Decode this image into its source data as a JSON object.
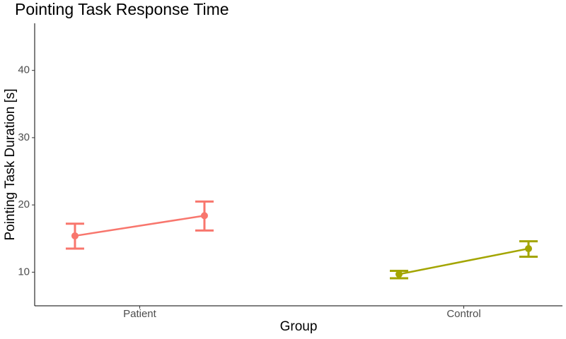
{
  "chart_data": {
    "type": "errorbar",
    "title": "Pointing Task Response Time",
    "x_label": "Group",
    "y_label": "Pointing Task Duration [s]",
    "categories": [
      "Patient",
      "Control"
    ],
    "series": [
      {
        "color": "#f8766d",
        "values": [
          15.4,
          18.4
        ],
        "lower": [
          13.5,
          16.2
        ],
        "upper": [
          17.2,
          20.5
        ]
      },
      {
        "color": "#a3a500",
        "values": [
          9.7,
          13.5
        ],
        "lower": [
          9.1,
          12.3
        ],
        "upper": [
          10.2,
          14.6
        ]
      }
    ],
    "ylim": [
      5,
      47
    ],
    "yticks": [
      10,
      20,
      30,
      40
    ],
    "grid": false
  }
}
